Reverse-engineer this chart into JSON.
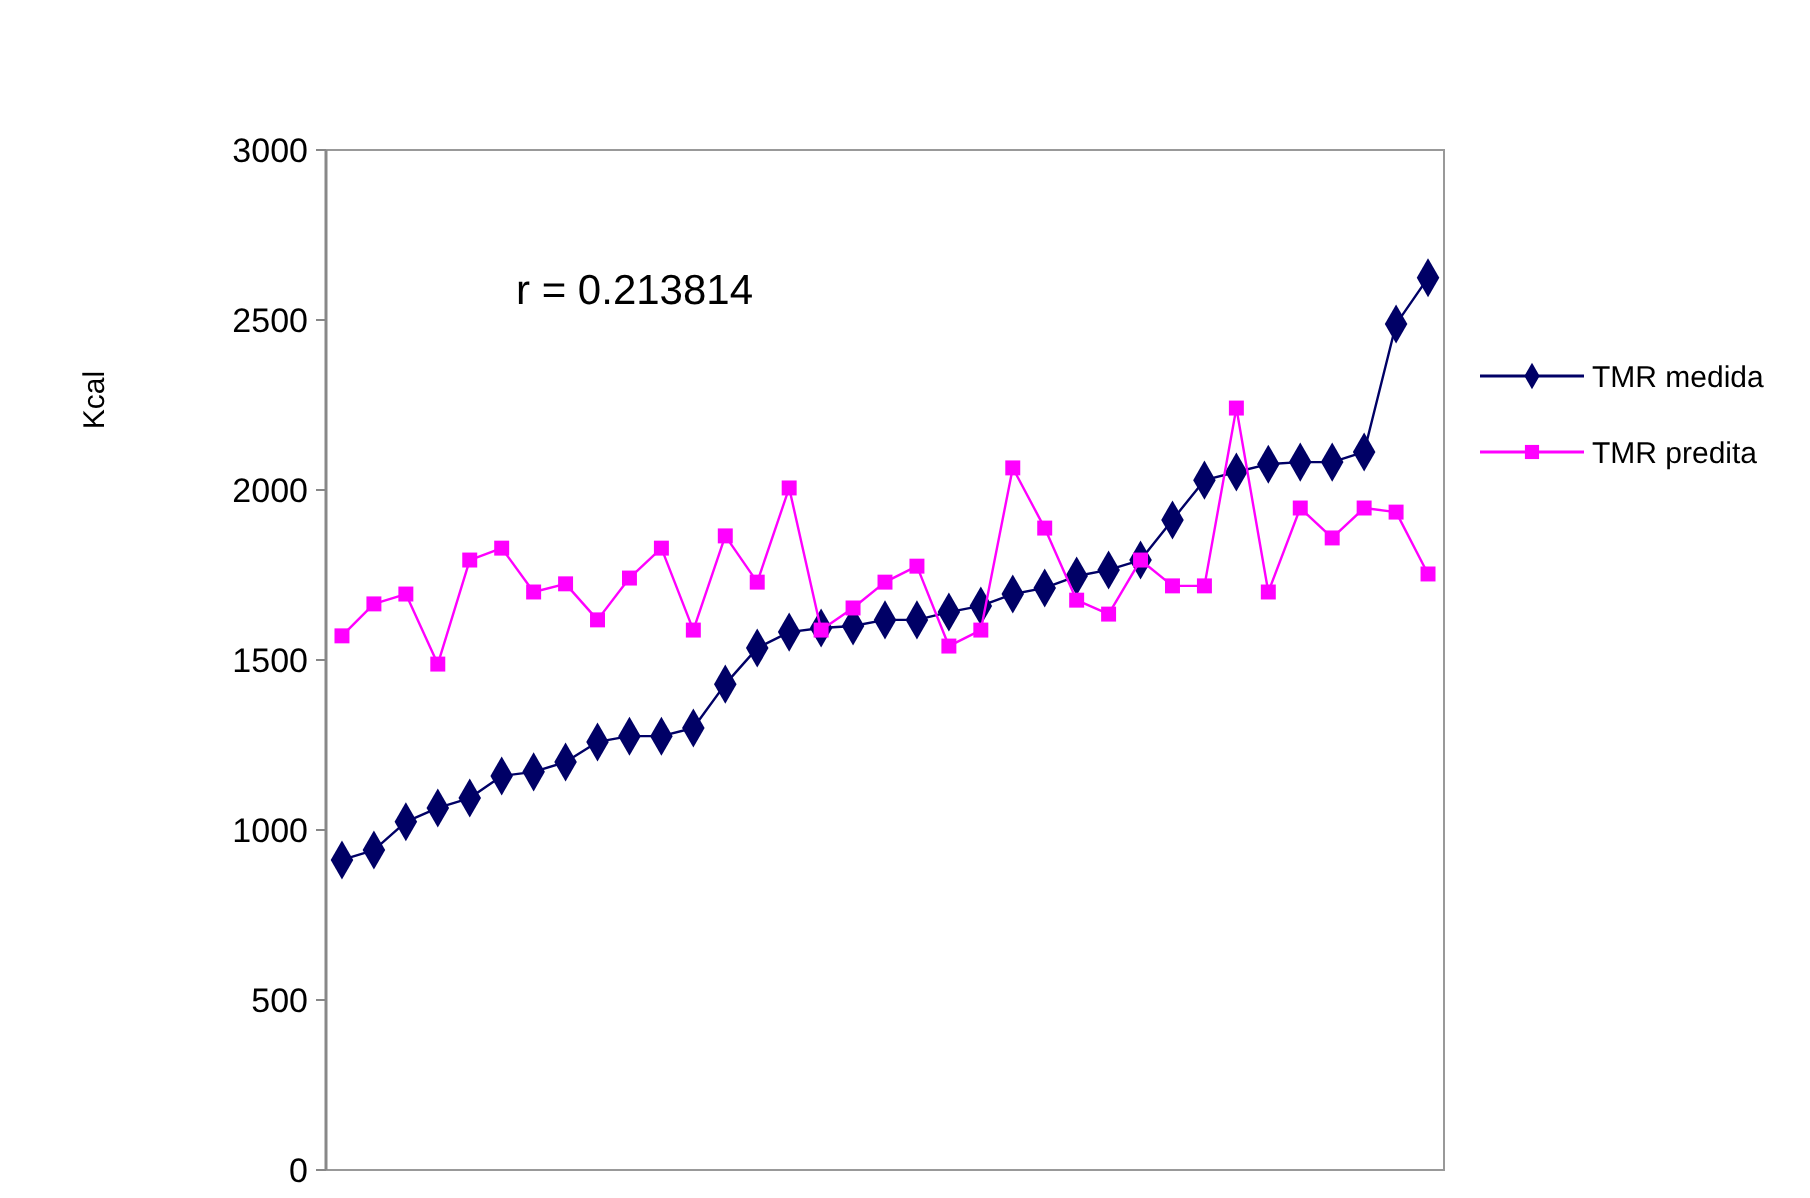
{
  "chart_data": {
    "type": "line",
    "ylabel": "Kcal",
    "annotations": [
      "r = 0.213814"
    ],
    "categories": [
      null,
      null,
      null,
      null,
      null,
      null,
      null,
      null,
      null,
      null,
      null,
      null,
      null,
      null,
      null,
      null,
      null,
      null,
      null,
      null,
      null,
      null,
      null,
      null,
      null,
      null,
      null,
      null,
      null,
      null,
      null,
      null,
      null,
      null,
      null
    ],
    "series": [
      {
        "name": "TMR medida",
        "color": "#000066",
        "marker": "diamond",
        "values": [
          912,
          941,
          1024,
          1065,
          1094,
          1159,
          1171,
          1200,
          1259,
          1276,
          1276,
          1300,
          1429,
          1535,
          1582,
          1594,
          1600,
          1618,
          1618,
          1641,
          1659,
          1694,
          1712,
          1747,
          1765,
          1794,
          1912,
          2029,
          2053,
          2076,
          2082,
          2082,
          2112,
          2488,
          2624
        ]
      },
      {
        "name": "TMR predita",
        "color": "#ff00ff",
        "marker": "square",
        "values": [
          1571,
          1665,
          1694,
          1488,
          1794,
          1829,
          1700,
          1724,
          1618,
          1741,
          1829,
          1588,
          1865,
          1729,
          2006,
          1588,
          1653,
          1729,
          1776,
          1541,
          1588,
          2065,
          1888,
          1676,
          1635,
          1794,
          1718,
          1718,
          2241,
          1700,
          1947,
          1859,
          1947,
          1935,
          1753
        ]
      }
    ],
    "ylim": [
      0,
      3000
    ],
    "yticks": [
      0,
      500,
      1000,
      1500,
      2000,
      2500,
      3000
    ],
    "grid": false,
    "legend": "right",
    "tick_labels": "y",
    "line_style": "solid"
  }
}
